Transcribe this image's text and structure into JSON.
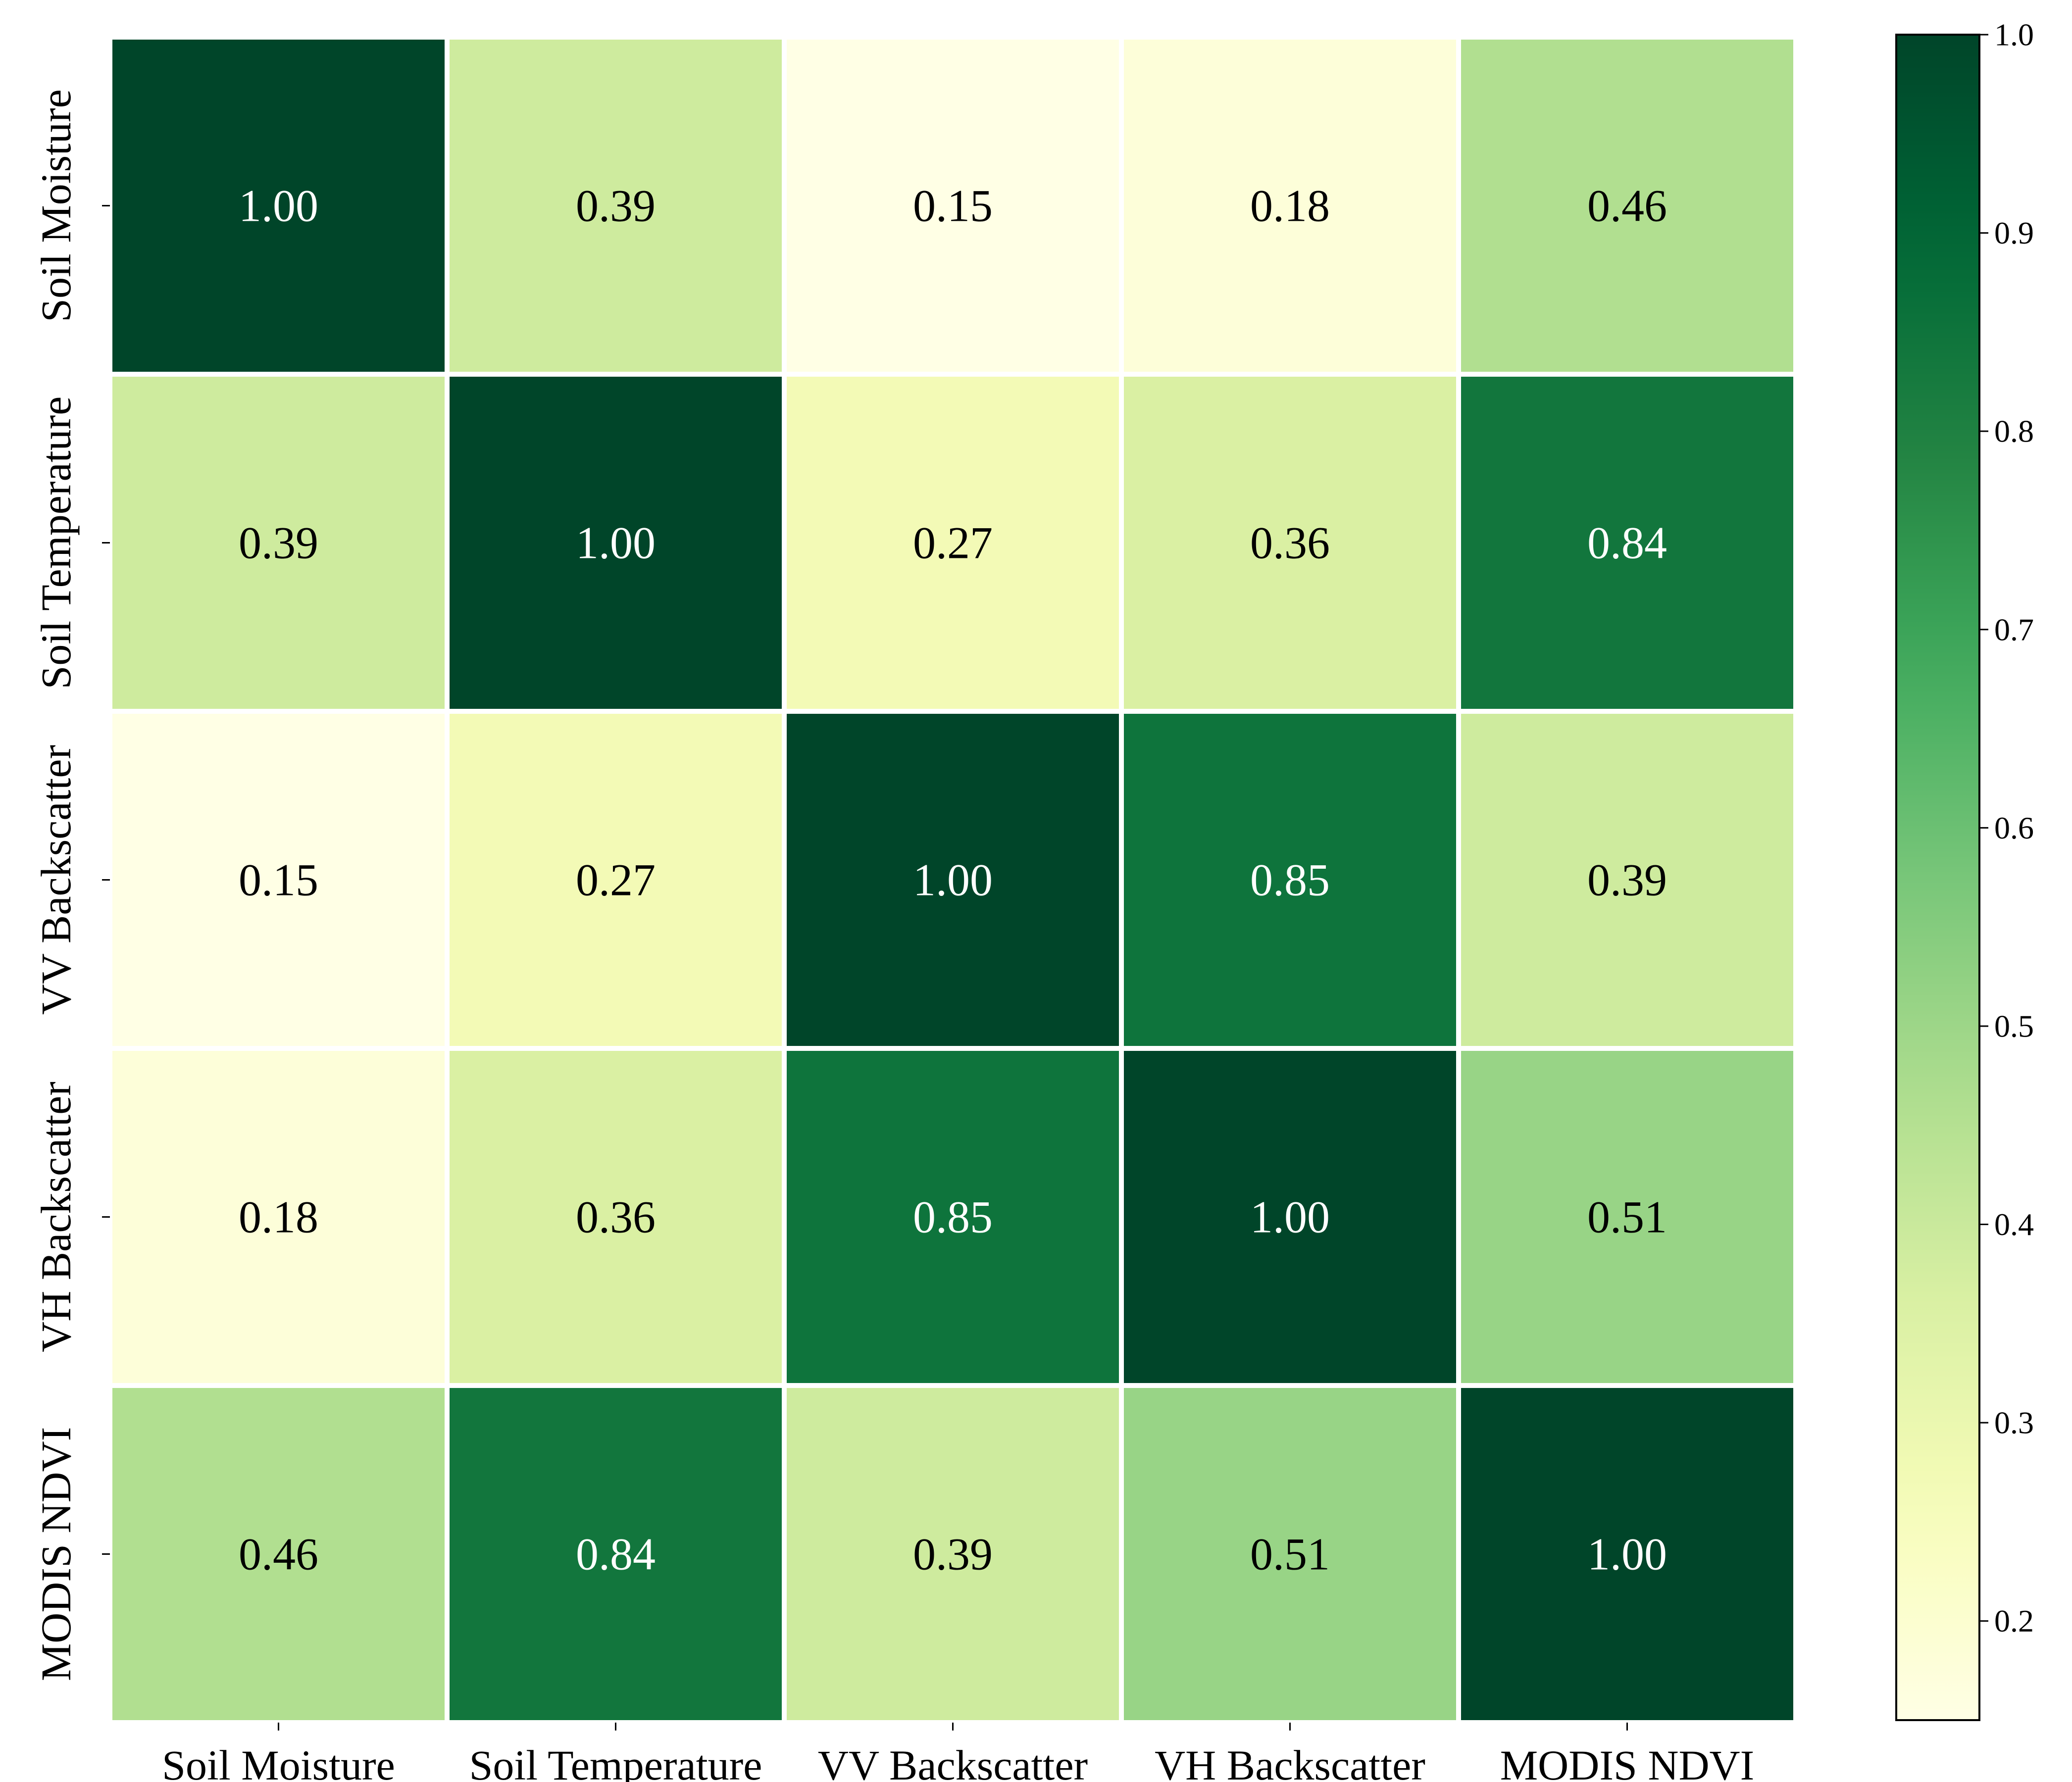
{
  "chart_data": {
    "type": "heatmap",
    "title": "",
    "xlabel": "",
    "ylabel": "",
    "x_labels": [
      "Soil Moisture",
      "Soil Temperature",
      "VV Backscatter",
      "VH Backscatter",
      "MODIS NDVI"
    ],
    "y_labels": [
      "Soil Moisture",
      "Soil Temperature",
      "VV Backscatter",
      "VH Backscatter",
      "MODIS NDVI"
    ],
    "values": [
      [
        1.0,
        0.39,
        0.15,
        0.18,
        0.46
      ],
      [
        0.39,
        1.0,
        0.27,
        0.36,
        0.84
      ],
      [
        0.15,
        0.27,
        1.0,
        0.85,
        0.39
      ],
      [
        0.18,
        0.36,
        0.85,
        1.0,
        0.51
      ],
      [
        0.46,
        0.84,
        0.39,
        0.51,
        1.0
      ]
    ],
    "value_labels": [
      [
        "1.00",
        "0.39",
        "0.15",
        "0.18",
        "0.46"
      ],
      [
        "0.39",
        "1.00",
        "0.27",
        "0.36",
        "0.84"
      ],
      [
        "0.15",
        "0.27",
        "1.00",
        "0.85",
        "0.39"
      ],
      [
        "0.18",
        "0.36",
        "0.85",
        "1.00",
        "0.51"
      ],
      [
        "0.46",
        "0.84",
        "0.39",
        "0.51",
        "1.00"
      ]
    ],
    "colormap": "YlGn",
    "color_range": [
      0.15,
      1.0
    ],
    "colorbar": {
      "placement": "right",
      "ticks": [
        0.2,
        0.3,
        0.4,
        0.5,
        0.6,
        0.7,
        0.8,
        0.9,
        1.0
      ],
      "tick_labels": [
        "0.2",
        "0.3",
        "0.4",
        "0.5",
        "0.6",
        "0.7",
        "0.8",
        "0.9",
        "1.0"
      ]
    },
    "colors": {
      "cell_border": "#ffffff",
      "dark_text": "#000000",
      "light_text": "#ffffff"
    }
  }
}
